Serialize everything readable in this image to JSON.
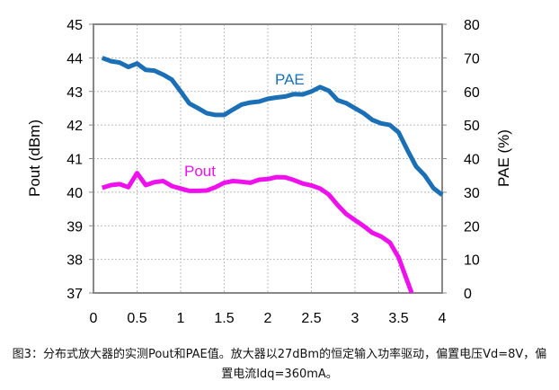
{
  "chart_data": {
    "type": "line",
    "xlabel": "",
    "ylabel": "Pout (dBm)",
    "y2label": "PAE (%)",
    "xlim": [
      0,
      4
    ],
    "ylim": [
      37,
      45
    ],
    "y2lim": [
      0,
      80
    ],
    "xticks": [
      "0",
      "0.5",
      "1",
      "1.5",
      "2",
      "2.5",
      "3",
      "3.5",
      "4"
    ],
    "yticks": [
      "37",
      "38",
      "39",
      "40",
      "41",
      "42",
      "43",
      "44",
      "45"
    ],
    "y2ticks": [
      "0",
      "10",
      "20",
      "30",
      "40",
      "50",
      "60",
      "70",
      "80"
    ],
    "grid": true,
    "series": [
      {
        "name": "PAE",
        "axis": "right",
        "color": "#1a6fb5",
        "x": [
          0.1,
          0.2,
          0.3,
          0.4,
          0.5,
          0.6,
          0.7,
          0.8,
          0.9,
          1.0,
          1.1,
          1.2,
          1.3,
          1.4,
          1.5,
          1.6,
          1.7,
          1.8,
          1.9,
          2.0,
          2.1,
          2.2,
          2.3,
          2.4,
          2.5,
          2.6,
          2.7,
          2.8,
          2.9,
          3.0,
          3.1,
          3.2,
          3.3,
          3.4,
          3.5,
          3.6,
          3.7,
          3.8,
          3.9,
          4.0
        ],
        "values": [
          70,
          69,
          68.6,
          67.3,
          68.3,
          66.4,
          66.2,
          65,
          63.5,
          60,
          56.4,
          55,
          53.5,
          53,
          53,
          54.6,
          56.1,
          56.7,
          57,
          57.8,
          58.2,
          58.5,
          59.2,
          59.1,
          60,
          61.3,
          60.2,
          57.4,
          56.5,
          55,
          53.5,
          51.5,
          50.5,
          50,
          47.8,
          42.6,
          37.7,
          35,
          31.2,
          29.2
        ]
      },
      {
        "name": "Pout",
        "axis": "left",
        "color": "#ee11ee",
        "x": [
          0.1,
          0.2,
          0.3,
          0.4,
          0.5,
          0.6,
          0.7,
          0.8,
          0.9,
          1.0,
          1.1,
          1.2,
          1.3,
          1.4,
          1.5,
          1.6,
          1.7,
          1.8,
          1.9,
          2.0,
          2.1,
          2.2,
          2.3,
          2.4,
          2.5,
          2.6,
          2.7,
          2.8,
          2.9,
          3.0,
          3.1,
          3.2,
          3.3,
          3.4,
          3.5,
          3.6,
          3.65
        ],
        "values": [
          40.13,
          40.21,
          40.24,
          40.15,
          40.57,
          40.21,
          40.3,
          40.33,
          40.18,
          40.11,
          40.04,
          40.04,
          40.05,
          40.15,
          40.28,
          40.33,
          40.31,
          40.28,
          40.37,
          40.39,
          40.45,
          40.44,
          40.36,
          40.26,
          40.2,
          40.11,
          39.93,
          39.62,
          39.35,
          39.17,
          38.99,
          38.79,
          38.68,
          38.5,
          38.06,
          37.35,
          37.0
        ]
      }
    ]
  },
  "caption": {
    "line1": "图3：分布式放大器的实测Pout和PAE值。放大器以27dBm的恒定输入功率驱动，偏置电压Vd=8V，偏",
    "line2": "置电流Idq=360mA。"
  }
}
